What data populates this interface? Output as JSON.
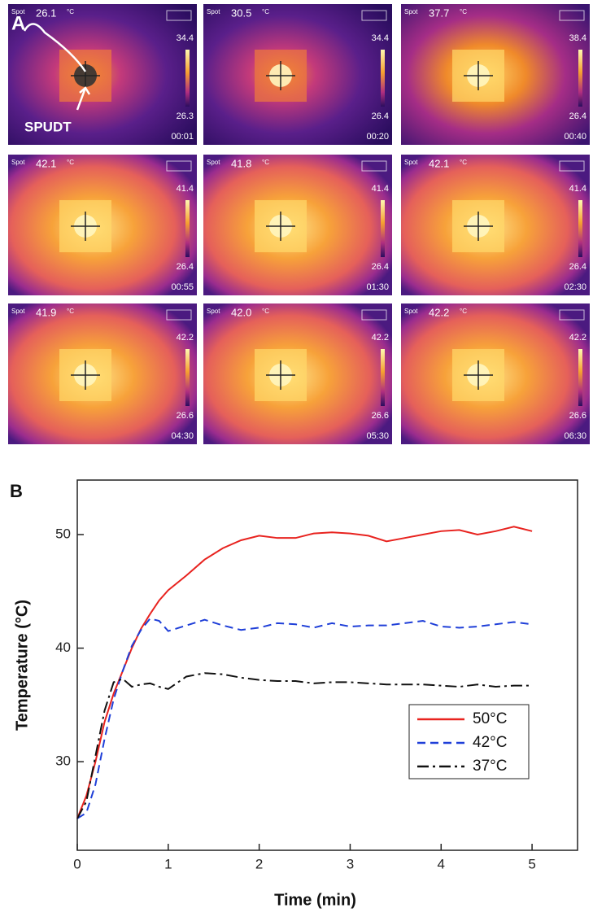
{
  "panel_a": {
    "label": "A",
    "annotation": "SPUDT",
    "spot_label": "Spot",
    "unit": "°C",
    "tiles": [
      {
        "spot": "26.1",
        "max": "34.4",
        "min": "26.3",
        "time": "00:01"
      },
      {
        "spot": "30.5",
        "max": "34.4",
        "min": "26.4",
        "time": "00:20"
      },
      {
        "spot": "37.7",
        "max": "38.4",
        "min": "26.4",
        "time": "00:40"
      },
      {
        "spot": "42.1",
        "max": "41.4",
        "min": "26.4",
        "time": "00:55"
      },
      {
        "spot": "41.8",
        "max": "41.4",
        "min": "26.4",
        "time": "01:30"
      },
      {
        "spot": "42.1",
        "max": "41.4",
        "min": "26.4",
        "time": "02:30"
      },
      {
        "spot": "41.9",
        "max": "42.2",
        "min": "26.6",
        "time": "04:30"
      },
      {
        "spot": "42.0",
        "max": "42.2",
        "min": "26.6",
        "time": "05:30"
      },
      {
        "spot": "42.2",
        "max": "42.2",
        "min": "26.6",
        "time": "06:30"
      }
    ]
  },
  "chart_data": {
    "type": "line",
    "panel_label": "B",
    "x_label": "Time (min)",
    "y_label": "Temperature (°C)",
    "x": [
      0,
      0.1,
      0.2,
      0.3,
      0.4,
      0.5,
      0.6,
      0.7,
      0.8,
      0.9,
      1.0,
      1.2,
      1.4,
      1.6,
      1.8,
      2.0,
      2.2,
      2.4,
      2.6,
      2.8,
      3.0,
      3.2,
      3.4,
      3.6,
      3.8,
      4.0,
      4.2,
      4.4,
      4.6,
      4.8,
      5.0
    ],
    "series": [
      {
        "name": "50°C",
        "color": "#e8231f",
        "dash": "solid",
        "values": [
          25,
          27,
          30,
          33.5,
          36,
          38,
          40,
          41.7,
          43,
          44.2,
          45.1,
          46.4,
          47.8,
          48.8,
          49.5,
          49.9,
          49.7,
          49.7,
          50.1,
          50.2,
          50.1,
          49.9,
          49.4,
          49.7,
          50.0,
          50.3,
          50.4,
          50.0,
          50.3,
          50.7,
          50.3
        ]
      },
      {
        "name": "42°C",
        "color": "#1f3fd8",
        "dash": "dashed",
        "values": [
          25,
          25.5,
          28,
          32,
          35.5,
          38,
          40.2,
          41.6,
          42.6,
          42.4,
          41.5,
          42.0,
          42.5,
          42.0,
          41.6,
          41.8,
          42.2,
          42.1,
          41.8,
          42.2,
          41.9,
          42.0,
          42.0,
          42.2,
          42.4,
          41.9,
          41.8,
          41.9,
          42.1,
          42.3,
          42.1
        ]
      },
      {
        "name": "37°C",
        "color": "#111111",
        "dash": "dashdot",
        "values": [
          25,
          26.5,
          30.5,
          34.5,
          37,
          37.3,
          36.6,
          36.8,
          36.9,
          36.6,
          36.4,
          37.5,
          37.8,
          37.7,
          37.4,
          37.2,
          37.1,
          37.1,
          36.9,
          37.0,
          37.0,
          36.9,
          36.8,
          36.8,
          36.8,
          36.7,
          36.6,
          36.8,
          36.6,
          36.7,
          36.7
        ]
      }
    ],
    "xlim": [
      0,
      5.5
    ],
    "ylim": [
      22.2,
      54.8
    ],
    "xticks": [
      0,
      1,
      2,
      3,
      4,
      5
    ],
    "yticks": [
      30,
      40,
      50
    ],
    "grid": false,
    "legend": "lower right"
  }
}
